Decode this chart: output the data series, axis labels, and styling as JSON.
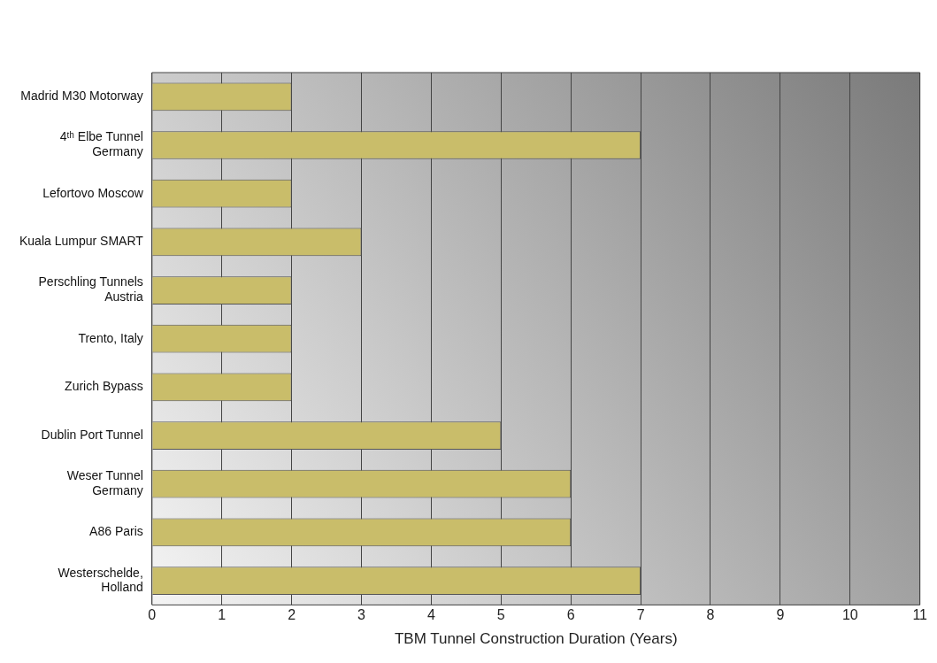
{
  "chart_data": {
    "type": "bar",
    "orientation": "horizontal",
    "xlabel": "TBM Tunnel Construction Duration (Years)",
    "categories": [
      "Madrid M30 Motorway",
      "4ᵗʰ Elbe Tunnel Germany",
      "Lefortovo Moscow",
      "Kuala Lumpur SMART",
      "Perschling Tunnels Austria",
      "Trento, Italy",
      "Zurich Bypass",
      "Dublin Port Tunnel",
      "Weser Tunnel Germany",
      "A86 Paris",
      "Westerschelde, Holland"
    ],
    "values": [
      2,
      7,
      2,
      3,
      2,
      2,
      2,
      5,
      6,
      6,
      7
    ],
    "color": "#c9bd6a",
    "xlim": [
      0,
      11
    ],
    "xticks": [
      0,
      1,
      2,
      3,
      4,
      5,
      6,
      7,
      8,
      9,
      10,
      11
    ],
    "grid": "x",
    "legend": false
  }
}
